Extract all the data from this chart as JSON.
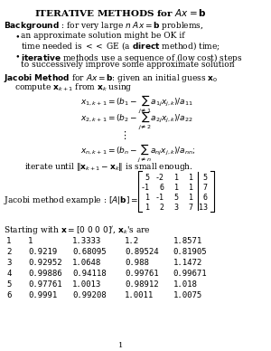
{
  "title": "ITERATIVE METHODS for $Ax = \\mathbf{b}$",
  "background_color": "#ffffff",
  "text_color": "#000000",
  "figsize": [
    3.0,
    3.88
  ],
  "dpi": 100
}
